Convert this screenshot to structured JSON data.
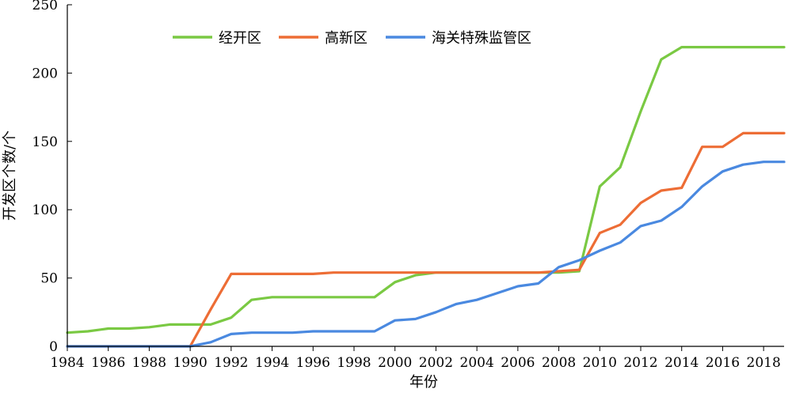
{
  "chart_data": {
    "type": "line",
    "xlabel": "年份",
    "ylabel": "开发区个数/个",
    "xlim": [
      1984,
      2019
    ],
    "ylim": [
      0,
      250
    ],
    "x_ticks": [
      "1984",
      "1986",
      "1988",
      "1990",
      "1992",
      "1994",
      "1996",
      "1998",
      "2000",
      "2002",
      "2004",
      "2006",
      "2008",
      "2010",
      "2012",
      "2014",
      "2016",
      "2018"
    ],
    "y_ticks": [
      "0",
      "50",
      "100",
      "150",
      "200",
      "250"
    ],
    "legend_position": "top-center",
    "grid": false,
    "x": [
      1984,
      1985,
      1986,
      1987,
      1988,
      1989,
      1990,
      1991,
      1992,
      1993,
      1994,
      1995,
      1996,
      1997,
      1998,
      1999,
      2000,
      2001,
      2002,
      2003,
      2004,
      2005,
      2006,
      2007,
      2008,
      2009,
      2010,
      2011,
      2012,
      2013,
      2014,
      2015,
      2016,
      2017,
      2018,
      2019
    ],
    "series": [
      {
        "name": "经开区",
        "color": "#7ac943",
        "values": [
          10,
          11,
          13,
          13,
          14,
          16,
          16,
          16,
          21,
          34,
          36,
          36,
          36,
          36,
          36,
          36,
          47,
          52,
          54,
          54,
          54,
          54,
          54,
          54,
          54,
          55,
          117,
          131,
          172,
          210,
          219,
          219,
          219,
          219,
          219,
          219
        ]
      },
      {
        "name": "高新区",
        "color": "#ed6d35",
        "values": [
          0,
          0,
          0,
          0,
          0,
          0,
          0,
          27,
          53,
          53,
          53,
          53,
          53,
          54,
          54,
          54,
          54,
          54,
          54,
          54,
          54,
          54,
          54,
          54,
          55,
          56,
          83,
          89,
          105,
          114,
          116,
          146,
          146,
          156,
          156,
          156
        ]
      },
      {
        "name": "海关特殊监管区",
        "color": "#4a89e0",
        "values": [
          0,
          0,
          0,
          0,
          0,
          0,
          0,
          3,
          9,
          10,
          10,
          10,
          11,
          11,
          11,
          11,
          19,
          20,
          25,
          31,
          34,
          39,
          44,
          46,
          58,
          63,
          70,
          76,
          88,
          92,
          102,
          117,
          128,
          133,
          135,
          135
        ]
      }
    ]
  }
}
